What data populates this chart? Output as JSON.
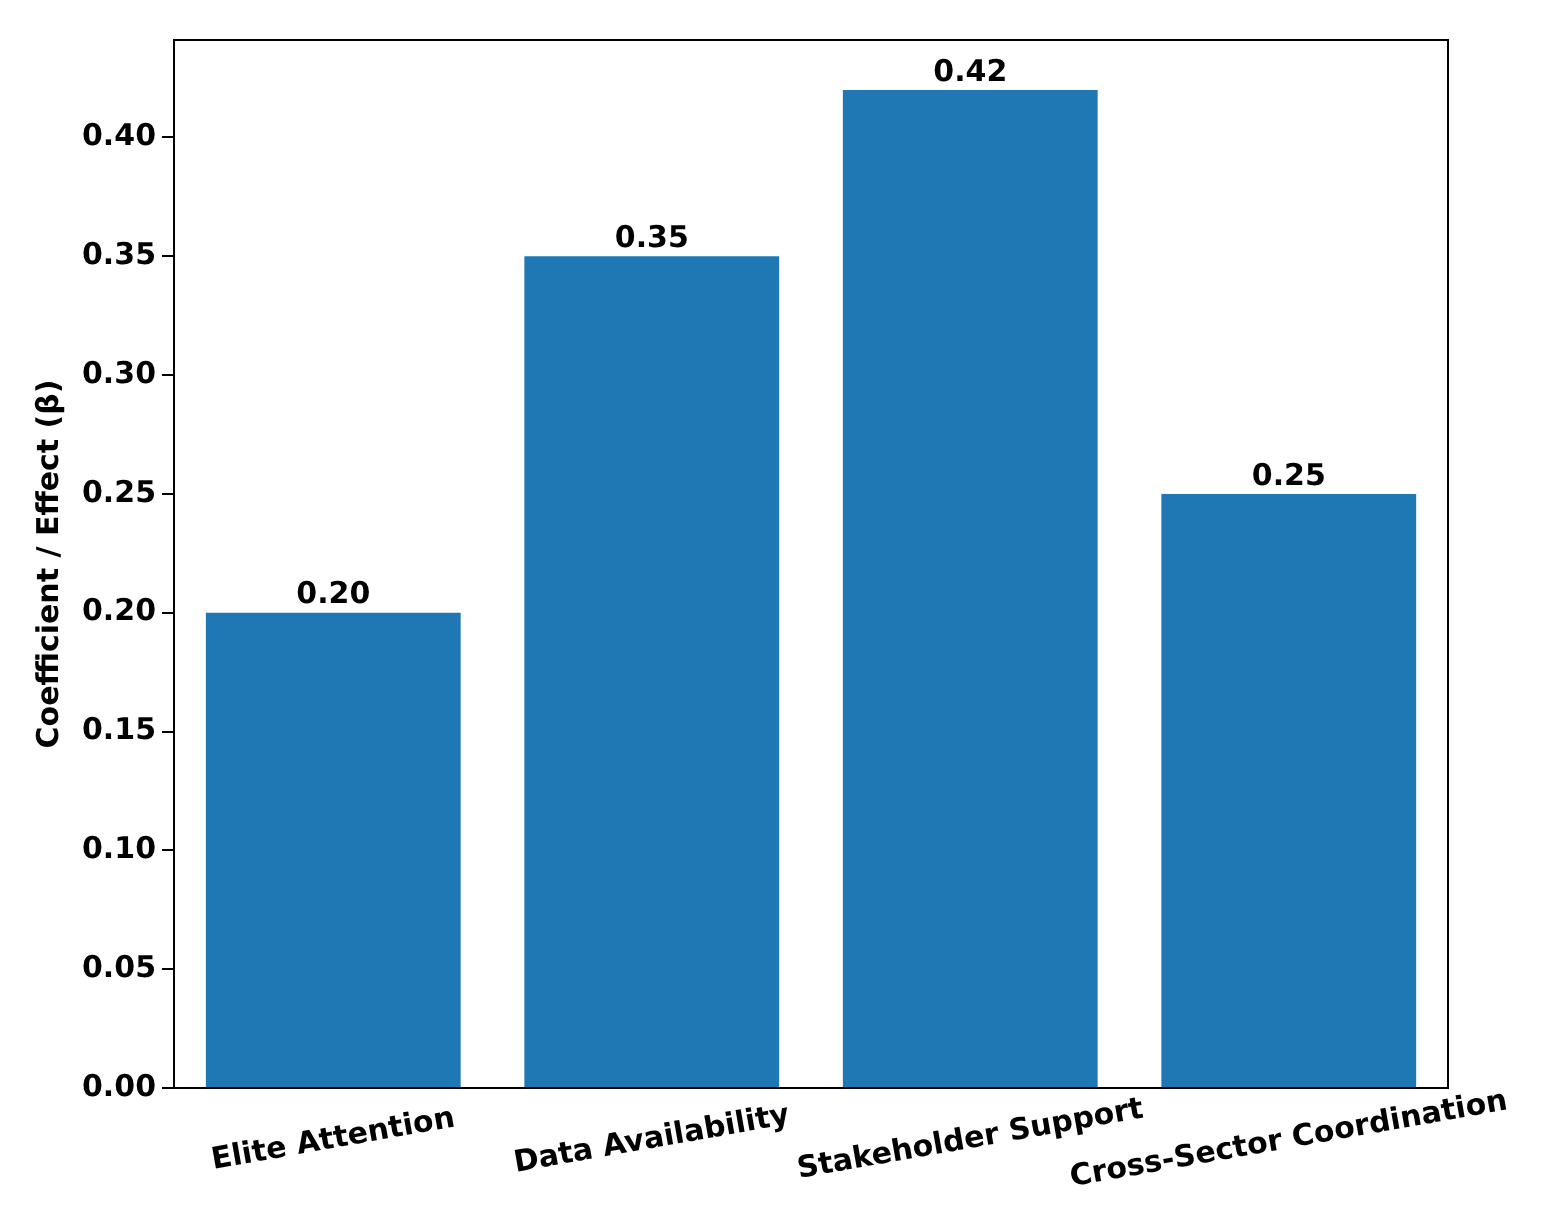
{
  "chart_data": {
    "type": "bar",
    "ylabel": "Coefficient / Effect (β)",
    "categories": [
      "Elite Attention",
      "Data Availability",
      "Stakeholder Support",
      "Cross-Sector Coordination"
    ],
    "values": [
      0.2,
      0.35,
      0.42,
      0.25
    ],
    "value_labels": [
      "0.20",
      "0.35",
      "0.42",
      "0.25"
    ],
    "color": "#1f77b4",
    "ylim": [
      0,
      0.441
    ],
    "yticks": [
      {
        "value": 0,
        "label": "0.00"
      },
      {
        "value": 0.05,
        "label": "0.05"
      },
      {
        "value": 0.1,
        "label": "0.10"
      },
      {
        "value": 0.15,
        "label": "0.15"
      },
      {
        "value": 0.2,
        "label": "0.20"
      },
      {
        "value": 0.25,
        "label": "0.25"
      },
      {
        "value": 0.3,
        "label": "0.30"
      },
      {
        "value": 0.35,
        "label": "0.35"
      },
      {
        "value": 0.4,
        "label": "0.40"
      }
    ],
    "grid": false,
    "legend": false
  }
}
